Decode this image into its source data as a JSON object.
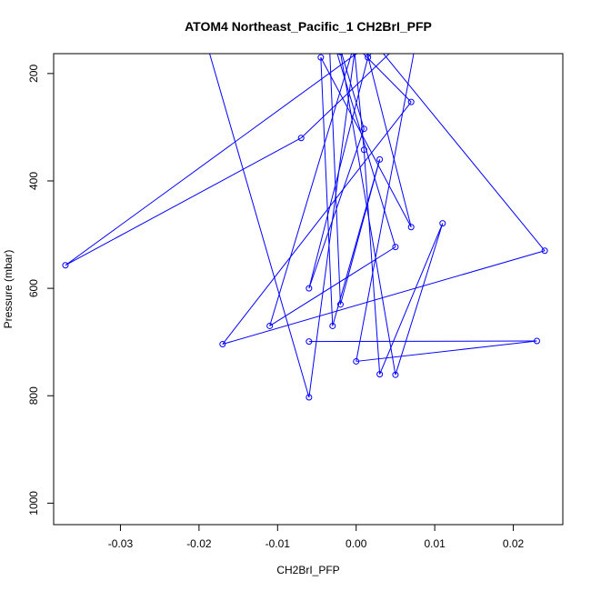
{
  "chart_data": {
    "type": "line",
    "title": "ATOM4 Northeast_Pacific_1 CH2BrI_PFP",
    "xlabel": "CH2BrI_PFP",
    "ylabel": "Pressure (mbar)",
    "xlim": [
      -0.0385,
      0.0263
    ],
    "ylim": [
      1040,
      163
    ],
    "y_reversed": true,
    "grid": false,
    "x_ticks": [
      -0.03,
      -0.02,
      -0.01,
      0,
      0.01,
      0.02
    ],
    "x_tick_labels": [
      "-0.03",
      "-0.02",
      "-0.01",
      "0.00",
      "0.01",
      "0.02"
    ],
    "y_ticks": [
      200,
      400,
      600,
      800,
      1000
    ],
    "y_tick_labels": [
      "200",
      "400",
      "600",
      "800",
      "1000"
    ],
    "series": [
      {
        "color": "#0000ff",
        "marker": "open-circle",
        "points": [
          [
            -0.0195,
            120
          ],
          [
            -0.006,
            803
          ],
          [
            -0.0002,
            160
          ],
          [
            0.001,
            342
          ],
          [
            0.003,
            760
          ],
          [
            0.011,
            479
          ],
          [
            0.005,
            761
          ],
          [
            -0.002,
            160
          ],
          [
            0.0005,
            110
          ],
          [
            0.007,
            486
          ],
          [
            -0.0045,
            170
          ],
          [
            -0.003,
            670
          ],
          [
            0.003,
            360
          ],
          [
            -0.002,
            630
          ],
          [
            -0.0035,
            110
          ],
          [
            0.005,
            523
          ],
          [
            -0.011,
            670
          ],
          [
            0.0005,
            110
          ],
          [
            0.024,
            530
          ],
          [
            -0.017,
            704
          ],
          [
            0.007,
            253
          ],
          [
            -0.003,
            105
          ],
          [
            0.001,
            303
          ],
          [
            -0.006,
            600
          ],
          [
            0.0015,
            170
          ],
          [
            0.005,
            110
          ],
          [
            -0.037,
            557
          ],
          [
            -0.007,
            320
          ],
          [
            0.008,
            110
          ],
          [
            0.0,
            736
          ],
          [
            0.023,
            698
          ],
          [
            -0.006,
            699
          ]
        ]
      }
    ]
  }
}
